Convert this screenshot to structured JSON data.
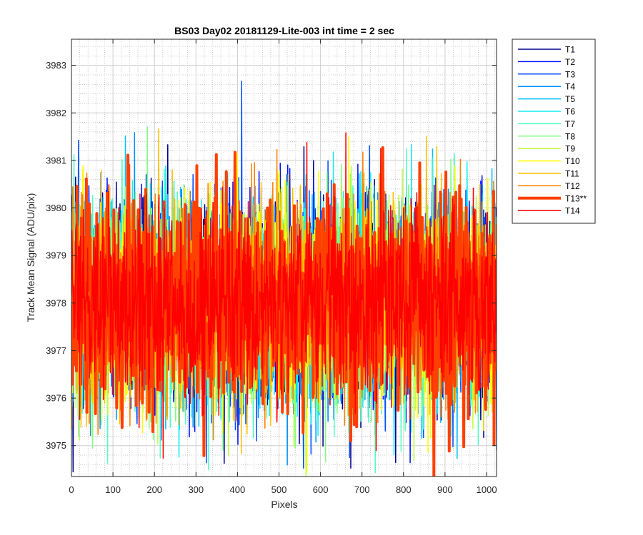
{
  "chart_data": {
    "type": "line",
    "title": "BS03 Day02 20181129-Lite-003 int time = 2 sec",
    "xlabel": "Pixels",
    "ylabel": "Track Mean Signal (ADU/pix)",
    "xlim": [
      0,
      1024
    ],
    "ylim": [
      3974.35,
      3983.55
    ],
    "xticks": [
      0,
      100,
      200,
      300,
      400,
      500,
      600,
      700,
      800,
      900,
      1000
    ],
    "yticks": [
      3975,
      3976,
      3977,
      3978,
      3979,
      3980,
      3981,
      3982,
      3983
    ],
    "grid": true,
    "minor_grid": true,
    "legend_position": "outside-right",
    "noise_mean": 3978.0,
    "noise_sigma": 1.05,
    "series": [
      {
        "name": "T1",
        "color": "#00008F",
        "width": 1.5
      },
      {
        "name": "T2",
        "color": "#0010FF",
        "width": 1.5
      },
      {
        "name": "T3",
        "color": "#0050FF",
        "width": 1.5
      },
      {
        "name": "T4",
        "color": "#0090FF",
        "width": 1.5
      },
      {
        "name": "T5",
        "color": "#00BFFF",
        "width": 1.5
      },
      {
        "name": "T6",
        "color": "#10EFEF",
        "width": 1.5
      },
      {
        "name": "T7",
        "color": "#50FFC0",
        "width": 1.5
      },
      {
        "name": "T8",
        "color": "#80FF80",
        "width": 1.5
      },
      {
        "name": "T9",
        "color": "#BFFF40",
        "width": 1.5
      },
      {
        "name": "T10",
        "color": "#FFFF00",
        "width": 1.5
      },
      {
        "name": "T11",
        "color": "#FFC000",
        "width": 1.5
      },
      {
        "name": "T12",
        "color": "#FF8000",
        "width": 1.5
      },
      {
        "name": "T13**",
        "color": "#FF4000",
        "width": 4
      },
      {
        "name": "T14",
        "color": "#FF0000",
        "width": 1.5
      }
    ]
  }
}
